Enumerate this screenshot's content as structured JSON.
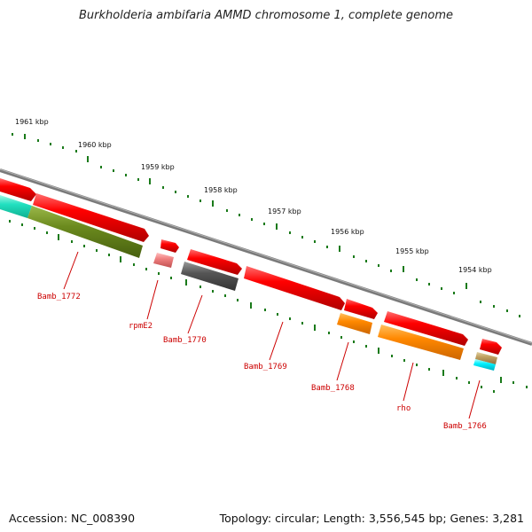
{
  "title": "Burkholderia ambifaria AMMD chromosome 1, complete genome",
  "footer": {
    "accession": "Accession: NC_008390",
    "summary": "Topology: circular; Length: 3,556,545 bp; Genes: 3,281"
  },
  "ruler_labels": [
    "1961 kbp",
    "1960 kbp",
    "1959 kbp",
    "1958 kbp",
    "1957 kbp",
    "1956 kbp",
    "1955 kbp",
    "1954 kbp"
  ],
  "gene_labels": {
    "g1772": "Bamb_1772",
    "g_rpmE2": "rpmE2",
    "g1770": "Bamb_1770",
    "g1769": "Bamb_1769",
    "g1768": "Bamb_1768",
    "g_rho": "rho",
    "g1766": "Bamb_1766"
  },
  "colors": {
    "cds": "#ee0000",
    "gene_olive": "#6b8a1e",
    "gene_cyan": "#22e0c0",
    "gene_gray": "#555555",
    "gene_orange": "#ff8800",
    "gene_pink": "#f08080",
    "ruler_tick": "#1a7a1a",
    "backbone": "#888888",
    "label_red": "#cc0000"
  }
}
